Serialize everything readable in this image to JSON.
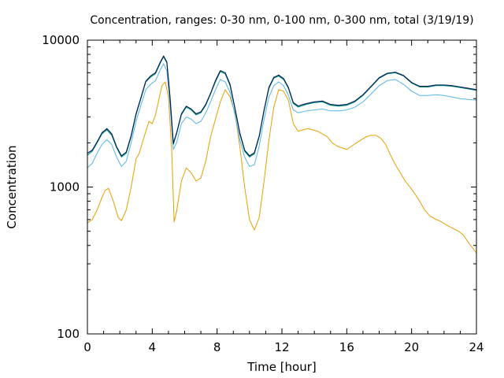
{
  "chart_data": {
    "type": "line",
    "title": "Concentration, ranges: 0-30 nm, 0-100 nm, 0-300 nm, total (3/19/19)",
    "xlabel": "Time [hour]",
    "ylabel": "Concentration",
    "xlim": [
      0,
      24
    ],
    "ylim": [
      100,
      10000
    ],
    "yscale": "log",
    "grid": false,
    "x_ticks": [
      0,
      4,
      8,
      12,
      16,
      20,
      24
    ],
    "x_tick_labels": [
      "0",
      "4",
      "8",
      "12",
      "16",
      "20",
      "24"
    ],
    "y_ticks": [
      100,
      1000,
      10000
    ],
    "y_tick_labels": [
      "100",
      "1000",
      "10000"
    ],
    "series": [
      {
        "color": "#E69F00",
        "x": [
          0,
          0.3,
          0.6,
          0.9,
          1.1,
          1.3,
          1.6,
          1.9,
          2.1,
          2.4,
          2.7,
          3.0,
          3.2,
          3.5,
          3.8,
          4.0,
          4.2,
          4.4,
          4.6,
          4.8,
          5.0,
          5.2,
          5.35,
          5.5,
          5.8,
          6.1,
          6.4,
          6.7,
          7.0,
          7.3,
          7.6,
          7.9,
          8.2,
          8.5,
          8.8,
          9.1,
          9.4,
          9.7,
          10.0,
          10.3,
          10.6,
          10.9,
          11.2,
          11.5,
          11.8,
          12.1,
          12.4,
          12.7,
          13.0,
          13.3,
          13.6,
          13.9,
          14.2,
          14.5,
          14.8,
          15.1,
          15.4,
          15.7,
          16.0,
          16.3,
          16.6,
          16.9,
          17.2,
          17.5,
          17.8,
          18.1,
          18.4,
          18.7,
          19.0,
          19.3,
          19.6,
          19.9,
          20.2,
          20.5,
          20.8,
          21.1,
          21.4,
          21.7,
          22.0,
          22.3,
          22.6,
          22.9,
          23.2,
          23.5,
          23.8,
          24.0
        ],
        "y": [
          570,
          600,
          700,
          850,
          950,
          980,
          800,
          620,
          590,
          700,
          1000,
          1550,
          1700,
          2200,
          2800,
          2700,
          3100,
          3900,
          4900,
          5200,
          4100,
          1800,
          580,
          680,
          1100,
          1350,
          1250,
          1100,
          1150,
          1500,
          2200,
          2900,
          3800,
          4600,
          4100,
          3200,
          1900,
          1000,
          600,
          510,
          620,
          1100,
          2100,
          3500,
          4600,
          4500,
          3900,
          2700,
          2400,
          2450,
          2500,
          2450,
          2400,
          2300,
          2200,
          2000,
          1900,
          1850,
          1800,
          1900,
          2000,
          2100,
          2200,
          2250,
          2250,
          2150,
          1950,
          1650,
          1420,
          1250,
          1100,
          1000,
          900,
          800,
          700,
          640,
          610,
          590,
          565,
          540,
          520,
          500,
          470,
          420,
          380,
          355
        ]
      },
      {
        "color": "#56B4E9",
        "x": [
          0,
          0.3,
          0.6,
          0.9,
          1.2,
          1.5,
          1.8,
          2.1,
          2.4,
          2.7,
          3.0,
          3.3,
          3.6,
          3.9,
          4.2,
          4.5,
          4.7,
          4.9,
          5.1,
          5.3,
          5.5,
          5.8,
          6.1,
          6.4,
          6.7,
          7.0,
          7.3,
          7.6,
          7.9,
          8.2,
          8.5,
          8.8,
          9.1,
          9.4,
          9.7,
          10.0,
          10.3,
          10.6,
          10.9,
          11.2,
          11.5,
          11.8,
          12.1,
          12.4,
          12.7,
          13.0,
          13.5,
          14.0,
          14.5,
          15.0,
          15.5,
          16.0,
          16.5,
          17.0,
          17.5,
          18.0,
          18.5,
          19.0,
          19.5,
          20.0,
          20.5,
          21.0,
          21.5,
          22.0,
          22.5,
          23.0,
          23.5,
          24.0
        ],
        "y": [
          1350,
          1450,
          1700,
          1950,
          2100,
          1950,
          1600,
          1380,
          1500,
          2000,
          2800,
          3600,
          4600,
          5000,
          5300,
          6300,
          6900,
          6200,
          3600,
          1800,
          2000,
          2700,
          3000,
          2900,
          2700,
          2800,
          3200,
          3800,
          4600,
          5400,
          5200,
          4400,
          3100,
          2100,
          1600,
          1380,
          1420,
          1900,
          2900,
          4100,
          4900,
          5200,
          4900,
          4200,
          3350,
          3200,
          3300,
          3350,
          3400,
          3300,
          3300,
          3350,
          3500,
          3800,
          4300,
          4900,
          5300,
          5400,
          5000,
          4500,
          4200,
          4200,
          4250,
          4200,
          4100,
          4000,
          3950,
          3900
        ]
      },
      {
        "color": "#009E73",
        "x": [
          0,
          0.3,
          0.6,
          0.9,
          1.2,
          1.5,
          1.8,
          2.1,
          2.4,
          2.7,
          3.0,
          3.3,
          3.6,
          3.9,
          4.2,
          4.5,
          4.7,
          4.9,
          5.1,
          5.3,
          5.5,
          5.8,
          6.1,
          6.4,
          6.7,
          7.0,
          7.3,
          7.6,
          7.9,
          8.2,
          8.5,
          8.8,
          9.1,
          9.4,
          9.7,
          10.0,
          10.3,
          10.6,
          10.9,
          11.2,
          11.5,
          11.8,
          12.1,
          12.4,
          12.7,
          13.0,
          13.5,
          14.0,
          14.5,
          15.0,
          15.5,
          16.0,
          16.5,
          17.0,
          17.5,
          18.0,
          18.5,
          19.0,
          19.5,
          20.0,
          20.5,
          21.0,
          21.5,
          22.0,
          22.5,
          23.0,
          23.5,
          24.0
        ],
        "y": [
          1650,
          1750,
          2000,
          2300,
          2450,
          2250,
          1850,
          1600,
          1700,
          2200,
          3100,
          4000,
          5200,
          5600,
          5900,
          7000,
          7700,
          7000,
          4000,
          1950,
          2300,
          3100,
          3500,
          3350,
          3100,
          3200,
          3600,
          4300,
          5200,
          6100,
          5900,
          4900,
          3400,
          2300,
          1750,
          1600,
          1680,
          2200,
          3300,
          4700,
          5500,
          5700,
          5400,
          4700,
          3700,
          3500,
          3650,
          3750,
          3800,
          3600,
          3550,
          3600,
          3800,
          4200,
          4800,
          5500,
          5900,
          6000,
          5700,
          5100,
          4800,
          4800,
          4900,
          4900,
          4850,
          4750,
          4650,
          4550
        ]
      },
      {
        "color": "#002060",
        "x": [
          0,
          0.3,
          0.6,
          0.9,
          1.2,
          1.5,
          1.8,
          2.1,
          2.4,
          2.7,
          3.0,
          3.3,
          3.6,
          3.9,
          4.2,
          4.5,
          4.7,
          4.9,
          5.1,
          5.3,
          5.5,
          5.8,
          6.1,
          6.4,
          6.7,
          7.0,
          7.3,
          7.6,
          7.9,
          8.2,
          8.5,
          8.8,
          9.1,
          9.4,
          9.7,
          10.0,
          10.3,
          10.6,
          10.9,
          11.2,
          11.5,
          11.8,
          12.1,
          12.4,
          12.7,
          13.0,
          13.5,
          14.0,
          14.5,
          15.0,
          15.5,
          16.0,
          16.5,
          17.0,
          17.5,
          18.0,
          18.5,
          19.0,
          19.5,
          20.0,
          20.5,
          21.0,
          21.5,
          22.0,
          22.5,
          23.0,
          23.5,
          24.0
        ],
        "y": [
          1700,
          1780,
          2030,
          2340,
          2500,
          2300,
          1880,
          1630,
          1730,
          2240,
          3150,
          4050,
          5250,
          5700,
          6000,
          7100,
          7800,
          7100,
          4050,
          1980,
          2330,
          3150,
          3550,
          3400,
          3150,
          3250,
          3650,
          4350,
          5300,
          6200,
          6000,
          5000,
          3450,
          2340,
          1780,
          1630,
          1710,
          2230,
          3350,
          4780,
          5580,
          5780,
          5480,
          4760,
          3760,
          3560,
          3700,
          3800,
          3850,
          3650,
          3600,
          3650,
          3850,
          4250,
          4850,
          5550,
          5950,
          6050,
          5750,
          5150,
          4850,
          4850,
          4950,
          4950,
          4900,
          4800,
          4700,
          4600
        ]
      }
    ]
  }
}
